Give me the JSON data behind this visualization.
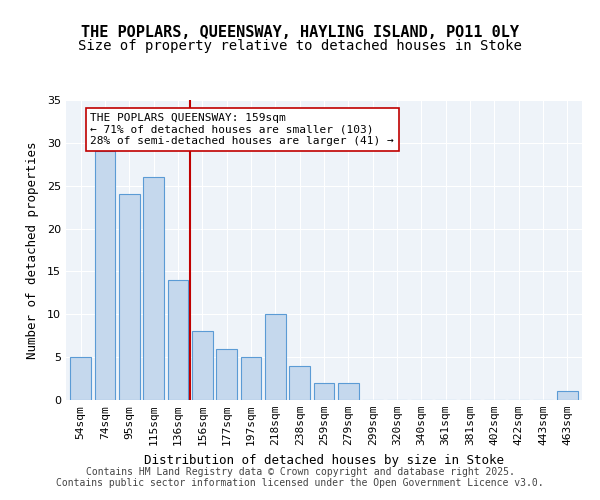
{
  "title_line1": "THE POPLARS, QUEENSWAY, HAYLING ISLAND, PO11 0LY",
  "title_line2": "Size of property relative to detached houses in Stoke",
  "xlabel": "Distribution of detached houses by size in Stoke",
  "ylabel": "Number of detached properties",
  "categories": [
    "54sqm",
    "74sqm",
    "95sqm",
    "115sqm",
    "136sqm",
    "156sqm",
    "177sqm",
    "197sqm",
    "218sqm",
    "238sqm",
    "259sqm",
    "279sqm",
    "299sqm",
    "320sqm",
    "340sqm",
    "361sqm",
    "381sqm",
    "402sqm",
    "422sqm",
    "443sqm",
    "463sqm"
  ],
  "values": [
    5,
    29,
    24,
    26,
    14,
    8,
    6,
    5,
    10,
    4,
    2,
    2,
    0,
    0,
    0,
    0,
    0,
    0,
    0,
    0,
    1
  ],
  "bar_color": "#c5d8ed",
  "bar_edge_color": "#5b9bd5",
  "reference_line_x": 4.5,
  "reference_line_color": "#c00000",
  "annotation_text": "THE POPLARS QUEENSWAY: 159sqm\n← 71% of detached houses are smaller (103)\n28% of semi-detached houses are larger (41) →",
  "annotation_box_edge": "#c00000",
  "ylim": [
    0,
    35
  ],
  "yticks": [
    0,
    5,
    10,
    15,
    20,
    25,
    30,
    35
  ],
  "background_color": "#eef3f9",
  "grid_color": "#ffffff",
  "footer_text": "Contains HM Land Registry data © Crown copyright and database right 2025.\nContains public sector information licensed under the Open Government Licence v3.0.",
  "title_fontsize": 11,
  "subtitle_fontsize": 10,
  "axis_label_fontsize": 9,
  "tick_fontsize": 8,
  "annotation_fontsize": 8,
  "footer_fontsize": 7
}
